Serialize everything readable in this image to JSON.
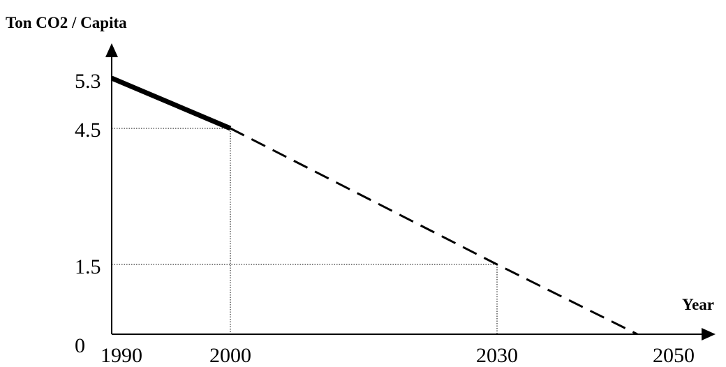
{
  "chart_data": {
    "type": "line",
    "ylabel": "Ton CO2 / Capita",
    "xlabel": "Year",
    "x_ticks": [
      "1990",
      "2000",
      "2030",
      "2050"
    ],
    "y_ticks": [
      "0",
      "1.5",
      "4.5",
      "5.3"
    ],
    "series": [
      {
        "style": "solid",
        "points": [
          [
            1990,
            5.3
          ],
          [
            2000,
            4.5
          ]
        ]
      },
      {
        "style": "dashed",
        "points": [
          [
            2000,
            4.5
          ],
          [
            2030,
            1.5
          ],
          [
            2045,
            0
          ]
        ]
      }
    ],
    "guides": [
      [
        2000,
        4.5
      ],
      [
        2030,
        1.5
      ]
    ],
    "xlim": [
      1990,
      2050
    ],
    "ylim": [
      0,
      5.3
    ]
  }
}
